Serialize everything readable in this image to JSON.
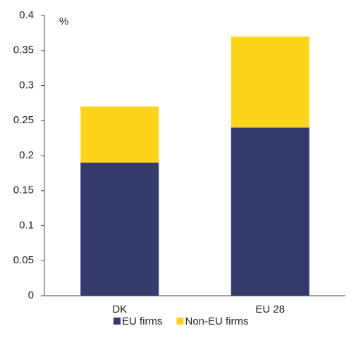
{
  "chart_data": {
    "type": "stacked_bar",
    "y_axis_label": "%",
    "categories": [
      "DK",
      "EU 28"
    ],
    "series": [
      {
        "name": "EU firms",
        "color": "#363b6f",
        "values": [
          0.19,
          0.24
        ]
      },
      {
        "name": "Non-EU firms",
        "color": "#fdd31c",
        "values": [
          0.08,
          0.13
        ]
      }
    ],
    "ylim": [
      0,
      0.4
    ],
    "yticks": [
      0,
      0.05,
      0.1,
      0.15,
      0.2,
      0.25,
      0.3,
      0.35,
      0.4
    ],
    "grid": false,
    "legend": "bottom"
  }
}
